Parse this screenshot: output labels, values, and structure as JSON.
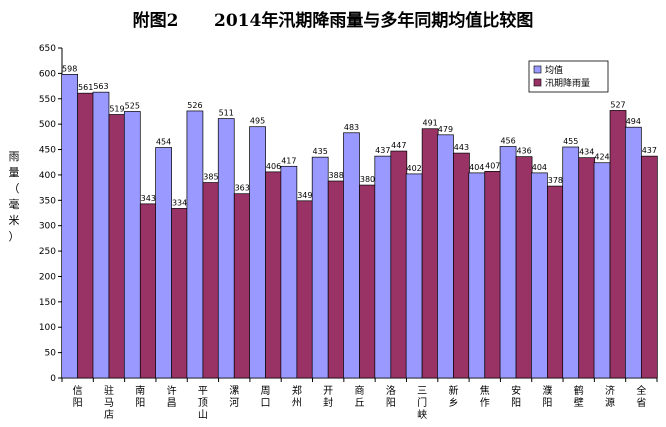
{
  "chart_data": {
    "type": "bar",
    "title": "附图2      2014年汛期降雨量与多年同期均值比较图",
    "ylabel_chars": [
      "雨",
      "量",
      "（",
      "毫",
      "米",
      "）"
    ],
    "ylim": [
      0,
      650
    ],
    "yticks": [
      0,
      50,
      100,
      150,
      200,
      250,
      300,
      350,
      400,
      450,
      500,
      550,
      600,
      650
    ],
    "legend_position": "top-right",
    "categories": [
      "信阳",
      "驻马店",
      "南阳",
      "许昌",
      "平顶山",
      "漯河",
      "周口",
      "郑州",
      "开封",
      "商丘",
      "洛阳",
      "三门峡",
      "新乡",
      "焦作",
      "安阳",
      "濮阳",
      "鹤壁",
      "济源",
      "全省"
    ],
    "series": [
      {
        "name": "均值",
        "color": "#9999ff",
        "values": [
          598,
          563,
          525,
          454,
          526,
          511,
          495,
          417,
          435,
          483,
          437,
          402,
          479,
          404,
          456,
          404,
          455,
          424,
          494
        ]
      },
      {
        "name": "汛期降雨量",
        "color": "#993366",
        "values": [
          561,
          519,
          343,
          334,
          385,
          363,
          406,
          349,
          388,
          380,
          447,
          491,
          443,
          407,
          436,
          378,
          434,
          527,
          437
        ]
      }
    ],
    "grid": false
  }
}
